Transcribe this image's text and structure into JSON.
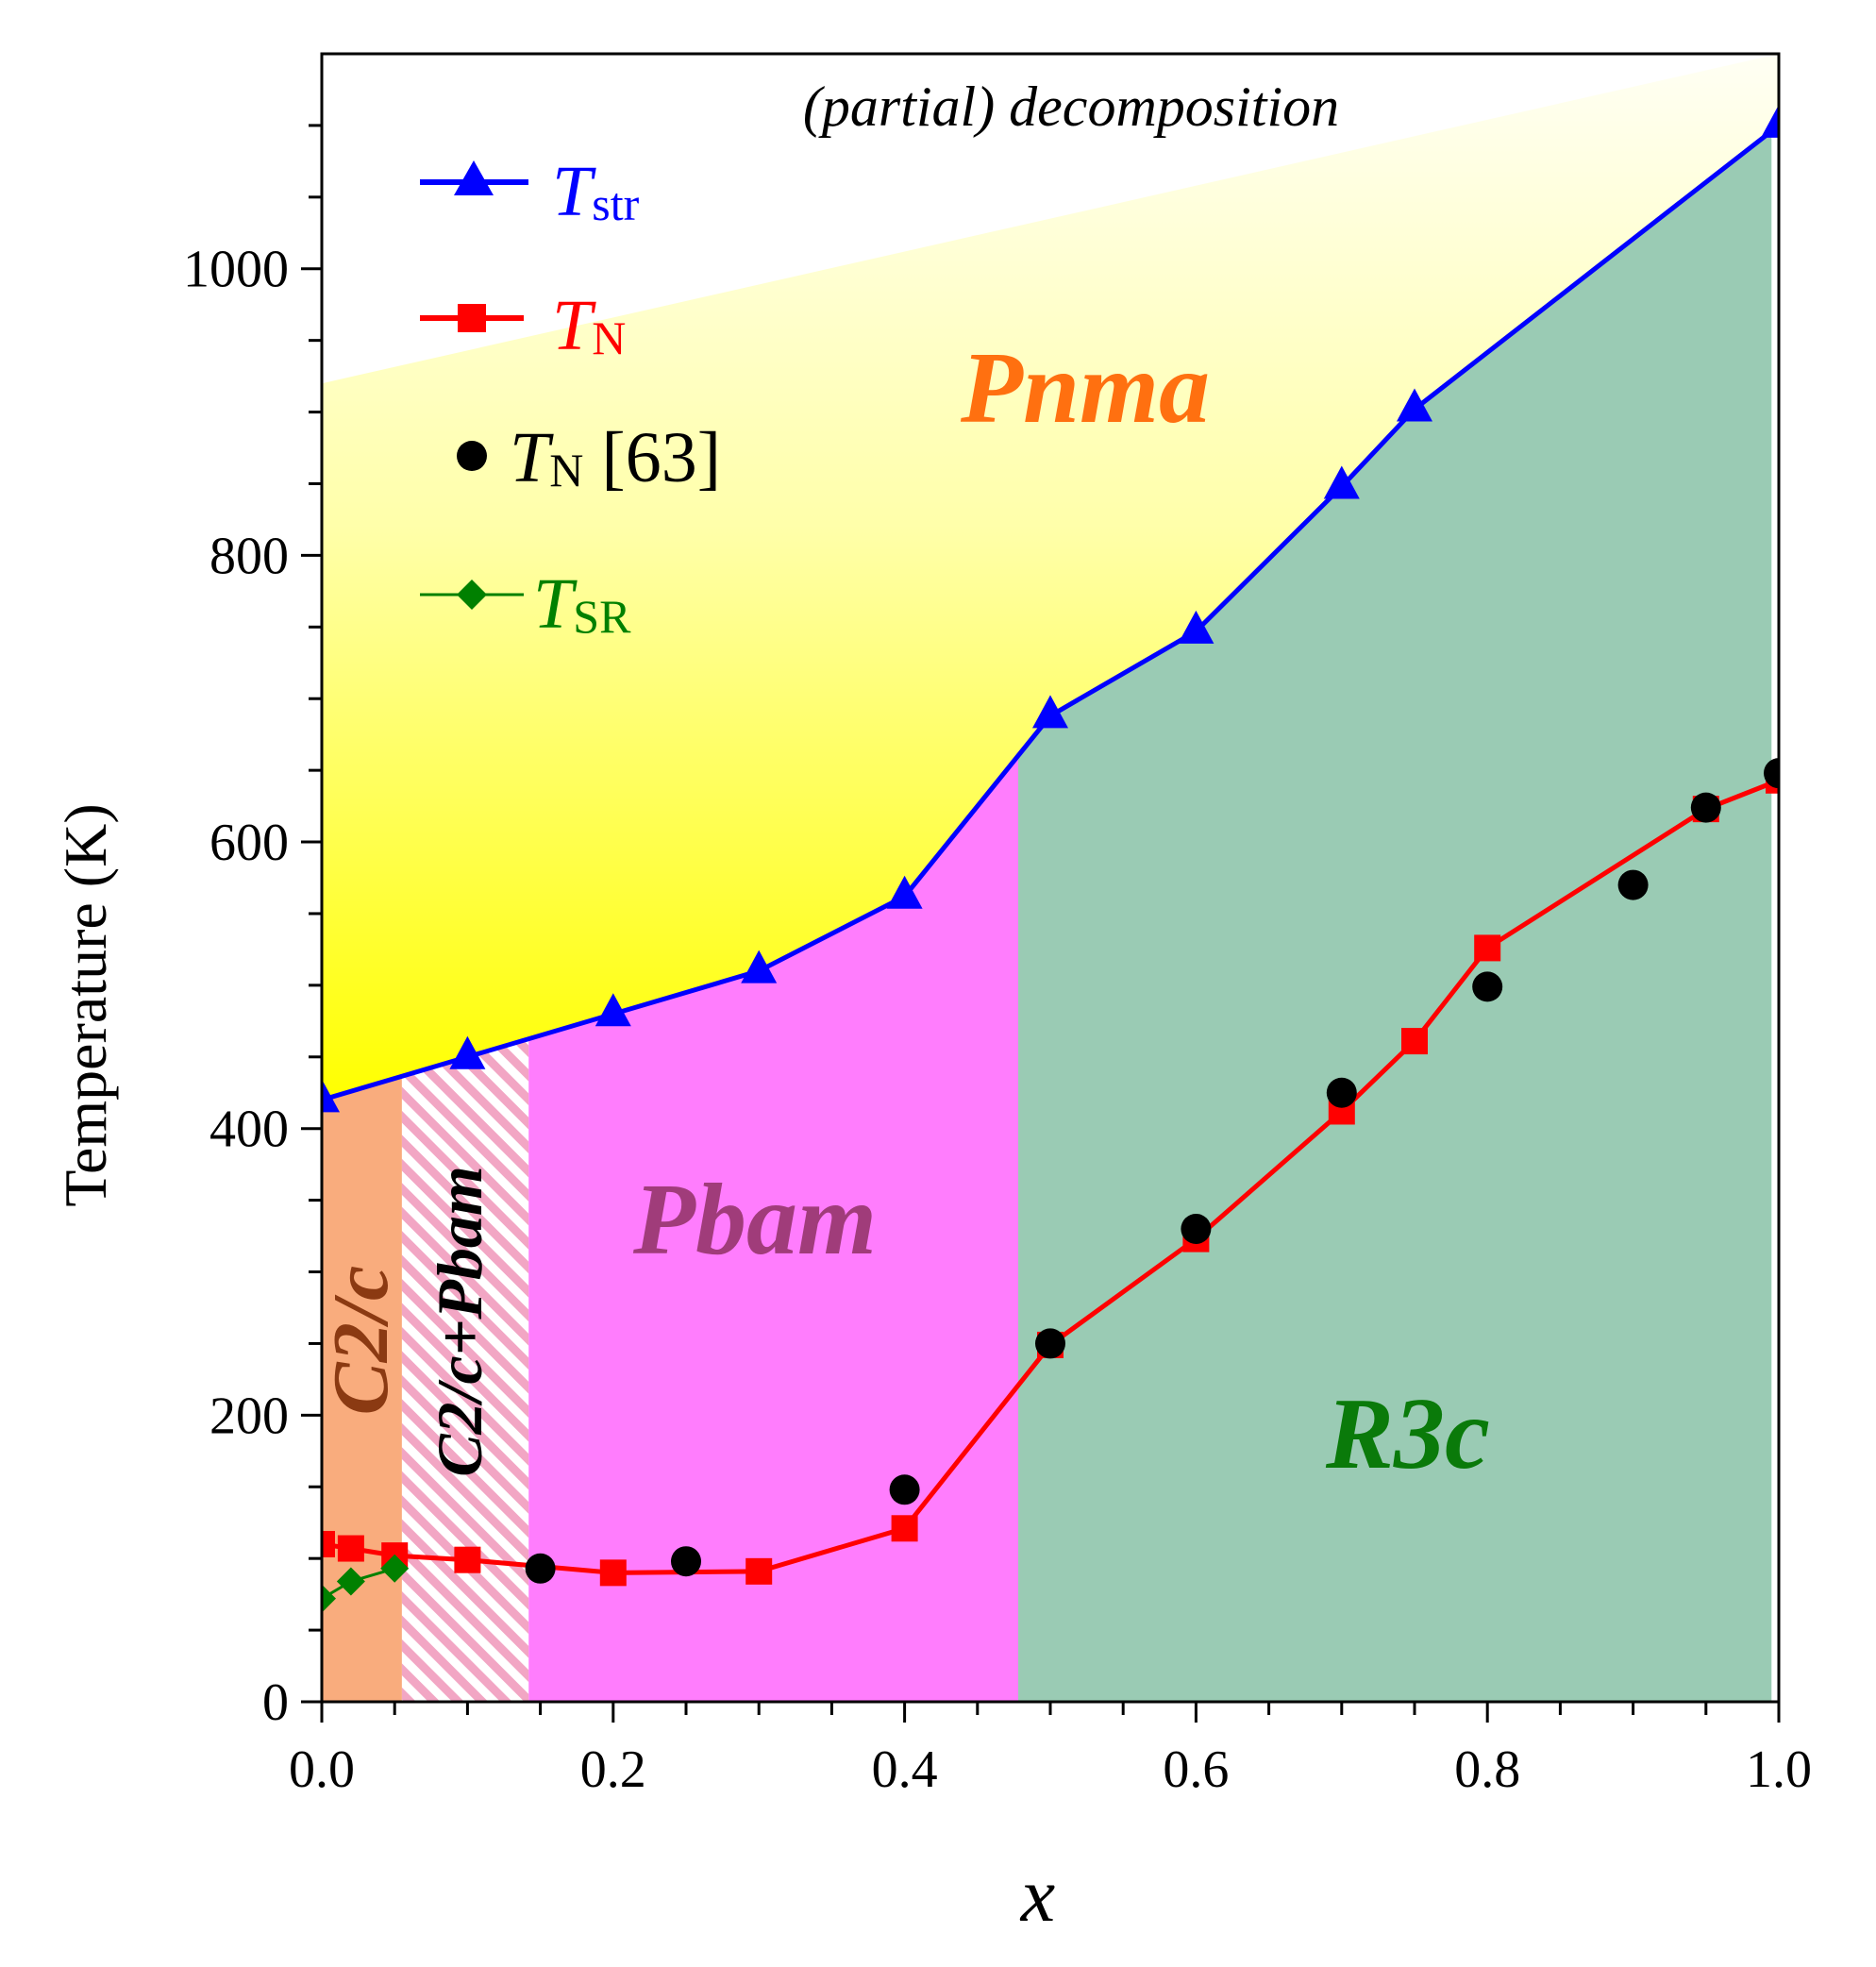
{
  "chart_data": {
    "type": "line",
    "title": "",
    "xlabel": "x",
    "ylabel": "Temperature (K)",
    "xlim": [
      0.0,
      1.0
    ],
    "ylim": [
      0,
      1150
    ],
    "x_ticks": [
      "0.0",
      "0.2",
      "0.4",
      "0.6",
      "0.8",
      "1.0"
    ],
    "y_ticks": [
      "0",
      "200",
      "400",
      "600",
      "800",
      "1000"
    ],
    "x_tick_values": [
      0.0,
      0.2,
      0.4,
      0.6,
      0.8,
      1.0
    ],
    "y_tick_values": [
      0,
      200,
      400,
      600,
      800,
      1000
    ],
    "legend_placement": "top-left",
    "series": [
      {
        "name": "T_str",
        "label_main": "T",
        "label_sub": "str",
        "color": "#0000ff",
        "marker": "triangle",
        "line": true,
        "x": [
          0.0,
          0.1,
          0.2,
          0.3,
          0.4,
          0.5,
          0.6,
          0.7,
          0.75,
          1.0
        ],
        "y": [
          420,
          450,
          480,
          510,
          562,
          688,
          747,
          848,
          902,
          1100
        ]
      },
      {
        "name": "T_N",
        "label_main": "T",
        "label_sub": "N",
        "color": "#ff0000",
        "marker": "square",
        "line": true,
        "x": [
          0.0,
          0.02,
          0.05,
          0.1,
          0.2,
          0.3,
          0.4,
          0.5,
          0.6,
          0.7,
          0.75,
          0.8,
          0.95,
          1.0
        ],
        "y": [
          110,
          107,
          102,
          99,
          90,
          91,
          121,
          249,
          323,
          412,
          461,
          526,
          623,
          643
        ]
      },
      {
        "name": "T_N [63]",
        "label_main": "T",
        "label_sub": "N",
        "label_suffix": " [63]",
        "color": "#000000",
        "marker": "circle",
        "line": false,
        "x": [
          0.15,
          0.25,
          0.4,
          0.5,
          0.6,
          0.7,
          0.8,
          0.9,
          0.95,
          1.0
        ],
        "y": [
          93,
          98,
          148,
          250,
          330,
          425,
          499,
          570,
          624,
          648
        ]
      },
      {
        "name": "T_SR",
        "label_main": "T",
        "label_sub": "SR",
        "color": "#008000",
        "marker": "diamond",
        "line": true,
        "x": [
          0.0,
          0.02,
          0.05
        ],
        "y": [
          72,
          84,
          93
        ]
      }
    ],
    "regions": [
      {
        "label": "(partial) decomposition",
        "color": "#000000"
      },
      {
        "label": "Pnma",
        "color": "#ff7010"
      },
      {
        "label": "Pbam",
        "color": "#a03c7a"
      },
      {
        "label": "R3c",
        "color": "#0a7a0a"
      },
      {
        "label": "C2/c",
        "color": "#8b3a12"
      },
      {
        "label": "C2/c+Pbam",
        "color": "#000000"
      }
    ],
    "region_bounds": {
      "c2c_x": [
        0.0,
        0.055
      ],
      "mixed_x": [
        0.055,
        0.142
      ],
      "pbam_x": [
        0.142,
        0.478
      ],
      "r3c_x": [
        0.478,
        0.995
      ]
    },
    "region_colors": {
      "c2c_fill": "#f9ac7d",
      "pbam_fill": "#ff7dfd",
      "r3c_fill": "#9acbb4",
      "mixed_stripe": "#f2a6c4"
    }
  }
}
